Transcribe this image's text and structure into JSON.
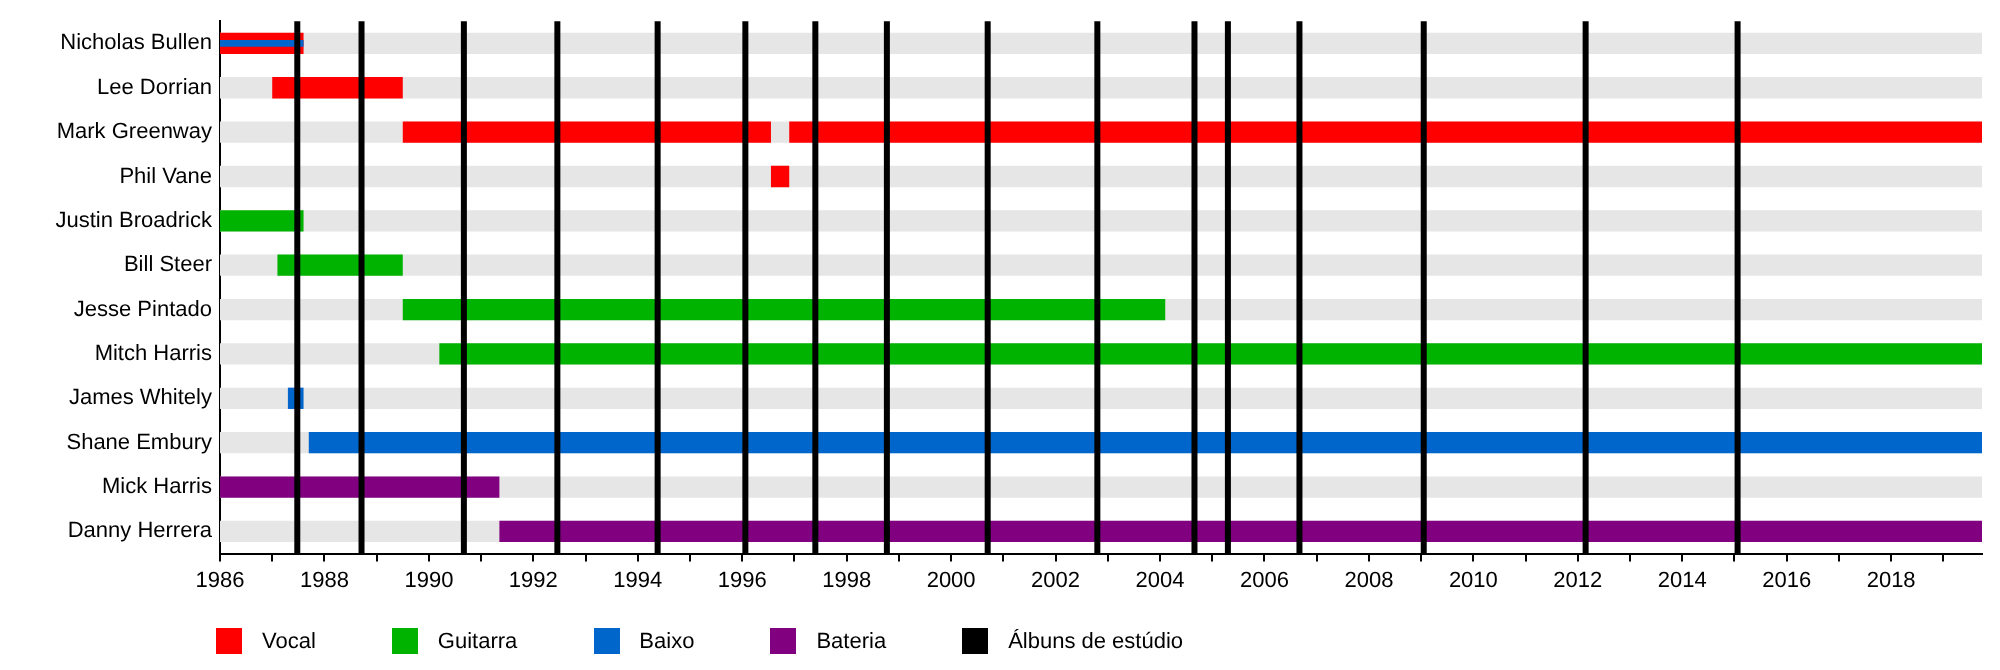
{
  "chart_data": {
    "type": "bar",
    "orientation": "horizontal",
    "categories": [
      "Nicholas Bullen",
      "Lee Dorrian",
      "Mark Greenway",
      "Phil Vane",
      "Justin Broadrick",
      "Bill Steer",
      "Jesse Pintado",
      "Mitch Harris",
      "James Whitely",
      "Shane Embury",
      "Mick Harris",
      "Danny Herrera"
    ],
    "series": [
      {
        "name": "Vocal",
        "color": "#ff0000",
        "base": [
          1986,
          1987,
          1989.5,
          1996.55,
          null,
          null,
          null,
          null,
          null,
          null,
          null,
          null
        ],
        "values": [
          1.6,
          2.5,
          7.05,
          0.35,
          null,
          null,
          null,
          null,
          null,
          null,
          null,
          null
        ]
      },
      {
        "color": "#ff0000",
        "base": [
          null,
          null,
          1996.9,
          null,
          null,
          null,
          null,
          null,
          null,
          null,
          null,
          null
        ],
        "values": [
          null,
          null,
          22.84,
          null,
          null,
          null,
          null,
          null,
          null,
          null,
          null,
          null
        ]
      },
      {
        "name": "Guitarra",
        "color": "#00b300",
        "base": [
          null,
          null,
          null,
          null,
          1986,
          1987.1,
          1989.5,
          1990.2,
          null,
          null,
          null,
          null
        ],
        "values": [
          null,
          null,
          null,
          null,
          1.6,
          2.4,
          14.6,
          29.54,
          null,
          null,
          null,
          null
        ]
      },
      {
        "name": "Baixo",
        "color": "#0066cc",
        "base": [
          null,
          null,
          null,
          null,
          null,
          null,
          null,
          null,
          1987.3,
          1987.7,
          null,
          null
        ],
        "values": [
          null,
          null,
          null,
          null,
          null,
          null,
          null,
          null,
          0.3,
          32.04,
          null,
          null
        ]
      },
      {
        "color": "#0066cc",
        "base": [
          1986,
          null,
          null,
          null,
          null,
          null,
          null,
          null,
          null,
          null,
          null,
          null
        ],
        "values": [
          1.6,
          null,
          null,
          null,
          null,
          null,
          null,
          null,
          null,
          null,
          null,
          null
        ]
      },
      {
        "name": "Bateria",
        "color": "#800080",
        "base": [
          null,
          null,
          null,
          null,
          null,
          null,
          null,
          null,
          null,
          null,
          1986,
          1991.35
        ],
        "values": [
          null,
          null,
          null,
          null,
          null,
          null,
          null,
          null,
          null,
          null,
          5.35,
          28.39
        ]
      }
    ],
    "xlim": [
      1986,
      2019.74
    ],
    "xticks": [
      1986,
      {
        "value": 1987,
        "label": null
      },
      1988,
      {
        "value": 1989,
        "label": null
      },
      1990,
      {
        "value": 1991,
        "label": null
      },
      1992,
      {
        "value": 1993,
        "label": null
      },
      1994,
      {
        "value": 1995,
        "label": null
      },
      1996,
      {
        "value": 1997,
        "label": null
      },
      1998,
      {
        "value": 1999,
        "label": null
      },
      2000,
      {
        "value": 2001,
        "label": null
      },
      2002,
      {
        "value": 2003,
        "label": null
      },
      2004,
      {
        "value": 2005,
        "label": null
      },
      2006,
      {
        "value": 2007,
        "label": null
      },
      2008,
      {
        "value": 2009,
        "label": null
      },
      2010,
      {
        "value": 2011,
        "label": null
      },
      2012,
      {
        "value": 2013,
        "label": null
      },
      2014,
      {
        "value": 2015,
        "label": null
      },
      2016,
      {
        "value": 2017,
        "label": null
      },
      2018,
      {
        "value": 2019,
        "label": null
      }
    ],
    "ref_lines": [
      {
        "axis": "x",
        "value": 1987.48,
        "label": "Álbuns de estúdio",
        "color": "#000000"
      },
      {
        "axis": "x",
        "value": 1988.71,
        "color": "#000000"
      },
      {
        "axis": "x",
        "value": 1990.67,
        "color": "#000000"
      },
      {
        "axis": "x",
        "value": 1992.46,
        "color": "#000000"
      },
      {
        "axis": "x",
        "value": 1994.38,
        "color": "#000000"
      },
      {
        "axis": "x",
        "value": 1996.06,
        "color": "#000000"
      },
      {
        "axis": "x",
        "value": 1997.4,
        "color": "#000000"
      },
      {
        "axis": "x",
        "value": 1998.77,
        "color": "#000000"
      },
      {
        "axis": "x",
        "value": 2000.7,
        "color": "#000000"
      },
      {
        "axis": "x",
        "value": 2002.8,
        "color": "#000000"
      },
      {
        "axis": "x",
        "value": 2004.66,
        "color": "#000000"
      },
      {
        "axis": "x",
        "value": 2005.3,
        "color": "#000000"
      },
      {
        "axis": "x",
        "value": 2006.67,
        "color": "#000000"
      },
      {
        "axis": "x",
        "value": 2009.05,
        "color": "#000000"
      },
      {
        "axis": "x",
        "value": 2012.15,
        "color": "#000000"
      },
      {
        "axis": "x",
        "value": 2015.06,
        "color": "#000000"
      }
    ],
    "legend": "bottom"
  }
}
